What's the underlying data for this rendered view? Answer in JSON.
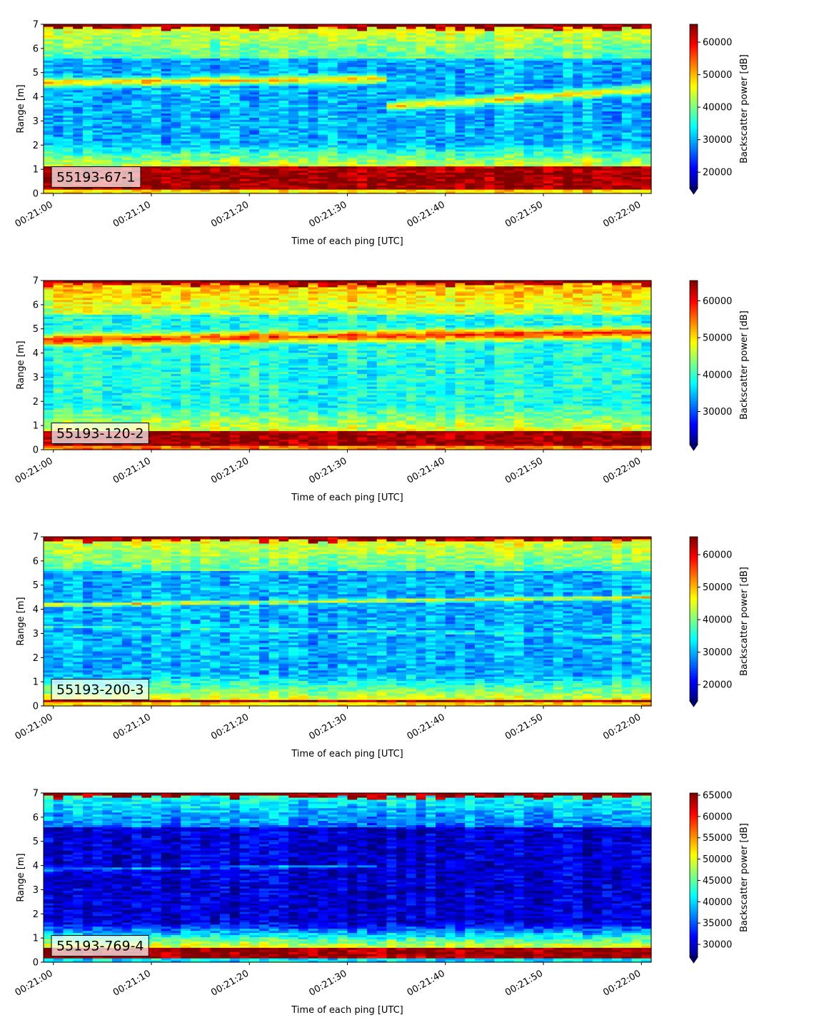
{
  "colormap": "jet",
  "colors": {
    "frame": "#000000",
    "background": "#ffffff",
    "label_box_alpha": 0.7
  },
  "shared": {
    "xlabel": "Time of each ping [UTC]",
    "ylabel": "Range [m]",
    "cbar_label": "Backscatter power [dB]",
    "xticks": [
      "00:21:00",
      "00:21:10",
      "00:21:20",
      "00:21:30",
      "00:21:40",
      "00:21:50",
      "00:22:00"
    ],
    "xrange_seconds": [
      -1,
      61
    ],
    "yticks": [
      "0",
      "1",
      "2",
      "3",
      "4",
      "5",
      "6",
      "7"
    ],
    "ylim": [
      0,
      7
    ]
  },
  "chart_data": [
    {
      "type": "heatmap",
      "label": "55193-67-1",
      "xlabel": "Time of each ping [UTC]",
      "ylabel": "Range [m]",
      "ylim": [
        0,
        7
      ],
      "colorbar": {
        "label": "Backscatter power [dB]",
        "min": 15000,
        "max": 65500,
        "extend": "min",
        "ticks": [
          20000,
          30000,
          40000,
          50000,
          60000
        ]
      },
      "features": {
        "near_field_top_m": 1.1,
        "mid_level": 0.3,
        "bottom_level": 0.55,
        "layers": [
          {
            "y0": 4.6,
            "y1": 4.75,
            "strength": 0.4,
            "width": 0.28,
            "until_s": 34
          },
          {
            "y0": 3.6,
            "y1": 4.3,
            "strength": 0.38,
            "width": 0.28,
            "from_s": 34
          }
        ]
      }
    },
    {
      "type": "heatmap",
      "label": "55193-120-2",
      "xlabel": "Time of each ping [UTC]",
      "ylabel": "Range [m]",
      "ylim": [
        0,
        7
      ],
      "colorbar": {
        "label": "Backscatter power [dB]",
        "min": 21000,
        "max": 65500,
        "extend": "min",
        "ticks": [
          30000,
          40000,
          50000,
          60000
        ]
      },
      "features": {
        "near_field_top_m": 0.8,
        "mid_level": 0.4,
        "bottom_level": 0.65,
        "layers": [
          {
            "y0": 4.55,
            "y1": 4.85,
            "strength": 0.45,
            "width": 0.35
          }
        ]
      }
    },
    {
      "type": "heatmap",
      "label": "55193-200-3",
      "xlabel": "Time of each ping [UTC]",
      "ylabel": "Range [m]",
      "ylim": [
        0,
        7
      ],
      "colorbar": {
        "label": "Backscatter power [dB]",
        "min": 15000,
        "max": 65500,
        "extend": "min",
        "ticks": [
          20000,
          30000,
          40000,
          50000,
          60000
        ]
      },
      "features": {
        "near_field_top_m": 0.3,
        "mid_level": 0.3,
        "bottom_level": 0.55,
        "layers": [
          {
            "y0": 4.2,
            "y1": 4.5,
            "strength": 0.35,
            "width": 0.12
          },
          {
            "y0": 3.3,
            "y1": 2.9,
            "strength": 0.12,
            "width": 0.1
          }
        ]
      }
    },
    {
      "type": "heatmap",
      "label": "55193-769-4",
      "xlabel": "Time of each ping [UTC]",
      "ylabel": "Range [m]",
      "ylim": [
        0,
        7
      ],
      "colorbar": {
        "label": "Backscatter power [dB]",
        "min": 27000,
        "max": 65500,
        "extend": "min",
        "ticks": [
          30000,
          35000,
          40000,
          45000,
          50000,
          55000,
          60000,
          65000
        ]
      },
      "features": {
        "near_field_top_m": 0.65,
        "mid_level": 0.08,
        "bottom_level": 0.25,
        "layers": [
          {
            "y0": 3.85,
            "y1": 4.0,
            "strength": 0.22,
            "width": 0.09,
            "until_s": 33
          }
        ]
      }
    }
  ]
}
